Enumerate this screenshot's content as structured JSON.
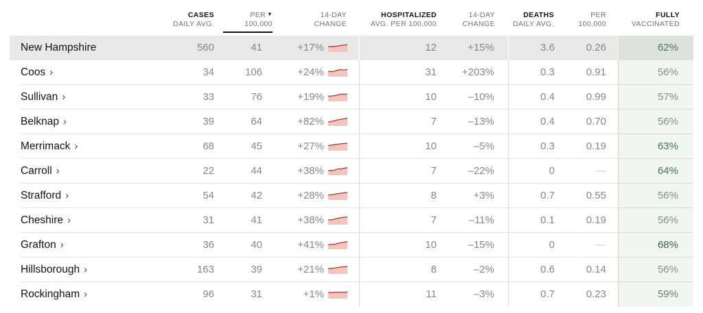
{
  "table": {
    "sort_icon": "▼",
    "chevron": "›",
    "columns": {
      "cases": {
        "line1": "CASES",
        "line2": "DAILY AVG."
      },
      "per100k": {
        "line1": "PER",
        "line2": "100,000"
      },
      "change14": {
        "line1": "14-DAY",
        "line2": "CHANGE"
      },
      "hospitalized": {
        "line1": "HOSPITALIZED",
        "line2": "AVG. PER 100,000"
      },
      "hosp_change14": {
        "line1": "14-DAY",
        "line2": "CHANGE"
      },
      "deaths": {
        "line1": "DEATHS",
        "line2": "DAILY AVG."
      },
      "deaths_per100k": {
        "line1": "PER",
        "line2": "100,000"
      },
      "vaccinated": {
        "line1": "FULLY",
        "line2": "VACCINATED"
      }
    },
    "rows": [
      {
        "name": "New Hampshire",
        "is_state": true,
        "cases_daily_avg": "560",
        "cases_per_100k": "41",
        "cases_14day_change": "+17%",
        "hospitalized_avg_per_100k": "12",
        "hosp_14day_change": "+15%",
        "deaths_daily_avg": "3.6",
        "deaths_per_100k": "0.26",
        "fully_vaccinated": "62%",
        "vax_color": "#44705f",
        "spark": [
          0.4,
          0.38,
          0.4,
          0.37,
          0.34,
          0.3,
          0.26,
          0.22,
          0.2,
          0.18
        ]
      },
      {
        "name": "Coos",
        "is_state": false,
        "cases_daily_avg": "34",
        "cases_per_100k": "106",
        "cases_14day_change": "+24%",
        "hospitalized_avg_per_100k": "31",
        "hosp_14day_change": "+203%",
        "deaths_daily_avg": "0.3",
        "deaths_per_100k": "0.91",
        "fully_vaccinated": "56%",
        "vax_color": "#7c948d",
        "spark": [
          0.42,
          0.4,
          0.43,
          0.38,
          0.3,
          0.22,
          0.2,
          0.24,
          0.22,
          0.2
        ]
      },
      {
        "name": "Sullivan",
        "is_state": false,
        "cases_daily_avg": "33",
        "cases_per_100k": "76",
        "cases_14day_change": "+19%",
        "hospitalized_avg_per_100k": "10",
        "hosp_14day_change": "–10%",
        "deaths_daily_avg": "0.4",
        "deaths_per_100k": "0.99",
        "fully_vaccinated": "57%",
        "vax_color": "#75908a",
        "spark": [
          0.4,
          0.42,
          0.38,
          0.36,
          0.3,
          0.24,
          0.2,
          0.18,
          0.2,
          0.16
        ]
      },
      {
        "name": "Belknap",
        "is_state": false,
        "cases_daily_avg": "39",
        "cases_per_100k": "64",
        "cases_14day_change": "+82%",
        "hospitalized_avg_per_100k": "7",
        "hosp_14day_change": "–13%",
        "deaths_daily_avg": "0.4",
        "deaths_per_100k": "0.70",
        "fully_vaccinated": "56%",
        "vax_color": "#7c948d",
        "spark": [
          0.55,
          0.5,
          0.46,
          0.4,
          0.34,
          0.28,
          0.24,
          0.2,
          0.16,
          0.12
        ]
      },
      {
        "name": "Merrimack",
        "is_state": false,
        "cases_daily_avg": "68",
        "cases_per_100k": "45",
        "cases_14day_change": "+27%",
        "hospitalized_avg_per_100k": "10",
        "hosp_14day_change": "–5%",
        "deaths_daily_avg": "0.3",
        "deaths_per_100k": "0.19",
        "fully_vaccinated": "63%",
        "vax_color": "#406d5c",
        "spark": [
          0.42,
          0.4,
          0.36,
          0.32,
          0.3,
          0.26,
          0.22,
          0.2,
          0.18,
          0.15
        ]
      },
      {
        "name": "Carroll",
        "is_state": false,
        "cases_daily_avg": "22",
        "cases_per_100k": "44",
        "cases_14day_change": "+38%",
        "hospitalized_avg_per_100k": "7",
        "hosp_14day_change": "–22%",
        "deaths_daily_avg": "0",
        "deaths_per_100k": "—",
        "fully_vaccinated": "64%",
        "vax_color": "#3d6b59",
        "spark": [
          0.5,
          0.44,
          0.48,
          0.4,
          0.32,
          0.26,
          0.3,
          0.22,
          0.18,
          0.15
        ]
      },
      {
        "name": "Strafford",
        "is_state": false,
        "cases_daily_avg": "54",
        "cases_per_100k": "42",
        "cases_14day_change": "+28%",
        "hospitalized_avg_per_100k": "8",
        "hosp_14day_change": "+3%",
        "deaths_daily_avg": "0.7",
        "deaths_per_100k": "0.55",
        "fully_vaccinated": "56%",
        "vax_color": "#7c948d",
        "spark": [
          0.44,
          0.42,
          0.38,
          0.36,
          0.3,
          0.28,
          0.24,
          0.2,
          0.18,
          0.16
        ]
      },
      {
        "name": "Cheshire",
        "is_state": false,
        "cases_daily_avg": "31",
        "cases_per_100k": "41",
        "cases_14day_change": "+38%",
        "hospitalized_avg_per_100k": "7",
        "hosp_14day_change": "–11%",
        "deaths_daily_avg": "0.1",
        "deaths_per_100k": "0.19",
        "fully_vaccinated": "56%",
        "vax_color": "#7c948d",
        "spark": [
          0.48,
          0.46,
          0.44,
          0.38,
          0.32,
          0.26,
          0.22,
          0.18,
          0.16,
          0.14
        ]
      },
      {
        "name": "Grafton",
        "is_state": false,
        "cases_daily_avg": "36",
        "cases_per_100k": "40",
        "cases_14day_change": "+41%",
        "hospitalized_avg_per_100k": "10",
        "hosp_14day_change": "–15%",
        "deaths_daily_avg": "0",
        "deaths_per_100k": "—",
        "fully_vaccinated": "68%",
        "vax_color": "#2f5f4c",
        "spark": [
          0.5,
          0.46,
          0.42,
          0.44,
          0.36,
          0.3,
          0.26,
          0.22,
          0.18,
          0.14
        ]
      },
      {
        "name": "Hillsborough",
        "is_state": false,
        "cases_daily_avg": "163",
        "cases_per_100k": "39",
        "cases_14day_change": "+21%",
        "hospitalized_avg_per_100k": "8",
        "hosp_14day_change": "–2%",
        "deaths_daily_avg": "0.6",
        "deaths_per_100k": "0.14",
        "fully_vaccinated": "56%",
        "vax_color": "#7c948d",
        "spark": [
          0.4,
          0.38,
          0.36,
          0.34,
          0.3,
          0.26,
          0.22,
          0.2,
          0.18,
          0.16
        ]
      },
      {
        "name": "Rockingham",
        "is_state": false,
        "cases_daily_avg": "96",
        "cases_per_100k": "31",
        "cases_14day_change": "+1%",
        "hospitalized_avg_per_100k": "11",
        "hosp_14day_change": "–3%",
        "deaths_daily_avg": "0.7",
        "deaths_per_100k": "0.23",
        "fully_vaccinated": "59%",
        "vax_color": "#5d8277",
        "spark": [
          0.34,
          0.3,
          0.33,
          0.28,
          0.31,
          0.27,
          0.3,
          0.26,
          0.28,
          0.25
        ]
      }
    ]
  },
  "colors": {
    "state_row_bg": "#e9e9e9",
    "row_border": "#e2e2e2",
    "column_divider": "#d9d9d9",
    "spark_line": "#ab3a31",
    "spark_fill": "#f3c5c1",
    "number_text": "#878787",
    "header_dark": "#121212",
    "header_gray": "#727272",
    "vax_column_tint": "rgba(125,168,142,0.10)"
  }
}
